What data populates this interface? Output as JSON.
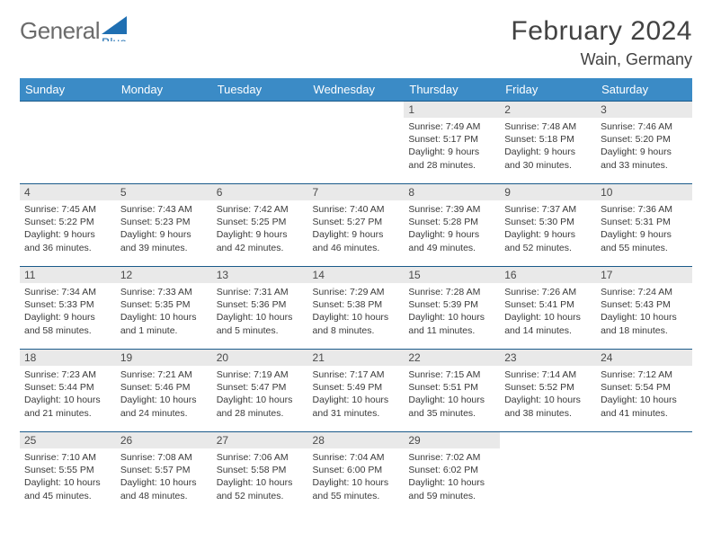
{
  "logo": {
    "text_general": "General",
    "text_blue_color": "#1f6fb2"
  },
  "header": {
    "month_title": "February 2024",
    "location": "Wain, Germany"
  },
  "colors": {
    "header_bg": "#3b8bc6",
    "header_text": "#ffffff",
    "daynum_bg": "#e9e9e9",
    "cell_border": "#1a5a8a",
    "body_text": "#3a3a3a",
    "title_text": "#424242",
    "logo_gray": "#6b6b6b",
    "logo_accent": "#1f6fb2"
  },
  "dow": [
    "Sunday",
    "Monday",
    "Tuesday",
    "Wednesday",
    "Thursday",
    "Friday",
    "Saturday"
  ],
  "weeks": [
    [
      null,
      null,
      null,
      null,
      {
        "n": "1",
        "sunrise": "7:49 AM",
        "sunset": "5:17 PM",
        "daylight": "9 hours and 28 minutes."
      },
      {
        "n": "2",
        "sunrise": "7:48 AM",
        "sunset": "5:18 PM",
        "daylight": "9 hours and 30 minutes."
      },
      {
        "n": "3",
        "sunrise": "7:46 AM",
        "sunset": "5:20 PM",
        "daylight": "9 hours and 33 minutes."
      }
    ],
    [
      {
        "n": "4",
        "sunrise": "7:45 AM",
        "sunset": "5:22 PM",
        "daylight": "9 hours and 36 minutes."
      },
      {
        "n": "5",
        "sunrise": "7:43 AM",
        "sunset": "5:23 PM",
        "daylight": "9 hours and 39 minutes."
      },
      {
        "n": "6",
        "sunrise": "7:42 AM",
        "sunset": "5:25 PM",
        "daylight": "9 hours and 42 minutes."
      },
      {
        "n": "7",
        "sunrise": "7:40 AM",
        "sunset": "5:27 PM",
        "daylight": "9 hours and 46 minutes."
      },
      {
        "n": "8",
        "sunrise": "7:39 AM",
        "sunset": "5:28 PM",
        "daylight": "9 hours and 49 minutes."
      },
      {
        "n": "9",
        "sunrise": "7:37 AM",
        "sunset": "5:30 PM",
        "daylight": "9 hours and 52 minutes."
      },
      {
        "n": "10",
        "sunrise": "7:36 AM",
        "sunset": "5:31 PM",
        "daylight": "9 hours and 55 minutes."
      }
    ],
    [
      {
        "n": "11",
        "sunrise": "7:34 AM",
        "sunset": "5:33 PM",
        "daylight": "9 hours and 58 minutes."
      },
      {
        "n": "12",
        "sunrise": "7:33 AM",
        "sunset": "5:35 PM",
        "daylight": "10 hours and 1 minute."
      },
      {
        "n": "13",
        "sunrise": "7:31 AM",
        "sunset": "5:36 PM",
        "daylight": "10 hours and 5 minutes."
      },
      {
        "n": "14",
        "sunrise": "7:29 AM",
        "sunset": "5:38 PM",
        "daylight": "10 hours and 8 minutes."
      },
      {
        "n": "15",
        "sunrise": "7:28 AM",
        "sunset": "5:39 PM",
        "daylight": "10 hours and 11 minutes."
      },
      {
        "n": "16",
        "sunrise": "7:26 AM",
        "sunset": "5:41 PM",
        "daylight": "10 hours and 14 minutes."
      },
      {
        "n": "17",
        "sunrise": "7:24 AM",
        "sunset": "5:43 PM",
        "daylight": "10 hours and 18 minutes."
      }
    ],
    [
      {
        "n": "18",
        "sunrise": "7:23 AM",
        "sunset": "5:44 PM",
        "daylight": "10 hours and 21 minutes."
      },
      {
        "n": "19",
        "sunrise": "7:21 AM",
        "sunset": "5:46 PM",
        "daylight": "10 hours and 24 minutes."
      },
      {
        "n": "20",
        "sunrise": "7:19 AM",
        "sunset": "5:47 PM",
        "daylight": "10 hours and 28 minutes."
      },
      {
        "n": "21",
        "sunrise": "7:17 AM",
        "sunset": "5:49 PM",
        "daylight": "10 hours and 31 minutes."
      },
      {
        "n": "22",
        "sunrise": "7:15 AM",
        "sunset": "5:51 PM",
        "daylight": "10 hours and 35 minutes."
      },
      {
        "n": "23",
        "sunrise": "7:14 AM",
        "sunset": "5:52 PM",
        "daylight": "10 hours and 38 minutes."
      },
      {
        "n": "24",
        "sunrise": "7:12 AM",
        "sunset": "5:54 PM",
        "daylight": "10 hours and 41 minutes."
      }
    ],
    [
      {
        "n": "25",
        "sunrise": "7:10 AM",
        "sunset": "5:55 PM",
        "daylight": "10 hours and 45 minutes."
      },
      {
        "n": "26",
        "sunrise": "7:08 AM",
        "sunset": "5:57 PM",
        "daylight": "10 hours and 48 minutes."
      },
      {
        "n": "27",
        "sunrise": "7:06 AM",
        "sunset": "5:58 PM",
        "daylight": "10 hours and 52 minutes."
      },
      {
        "n": "28",
        "sunrise": "7:04 AM",
        "sunset": "6:00 PM",
        "daylight": "10 hours and 55 minutes."
      },
      {
        "n": "29",
        "sunrise": "7:02 AM",
        "sunset": "6:02 PM",
        "daylight": "10 hours and 59 minutes."
      },
      null,
      null
    ]
  ],
  "labels": {
    "sunrise": "Sunrise: ",
    "sunset": "Sunset: ",
    "daylight": "Daylight: "
  }
}
